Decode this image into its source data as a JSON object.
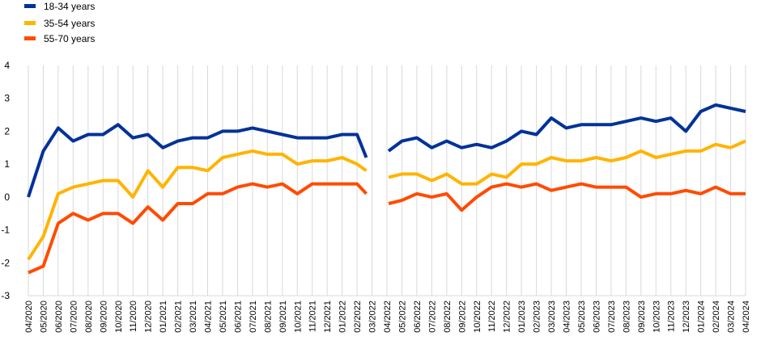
{
  "chart_data": {
    "type": "line",
    "title": "",
    "xlabel": "",
    "ylabel": "",
    "ylim": [
      -3,
      4
    ],
    "yticks": [
      -3,
      -2,
      -1,
      0,
      1,
      2,
      3,
      4
    ],
    "grid": "vertical",
    "legend": "top-left",
    "categories": [
      "04/2020",
      "05/2020",
      "06/2020",
      "07/2020",
      "08/2020",
      "09/2020",
      "10/2020",
      "11/2020",
      "12/2020",
      "01/2021",
      "02/2021",
      "03/2021",
      "04/2021",
      "05/2021",
      "06/2021",
      "07/2021",
      "08/2021",
      "09/2021",
      "10/2021",
      "11/2021",
      "12/2021",
      "01/2022",
      "02/2022",
      "03/2022",
      "04/2022",
      "05/2022",
      "06/2022",
      "07/2022",
      "08/2022",
      "09/2022",
      "10/2022",
      "11/2022",
      "12/2022",
      "01/2023",
      "02/2023",
      "03/2023",
      "04/2023",
      "05/2023",
      "06/2023",
      "07/2023",
      "08/2023",
      "09/2023",
      "10/2023",
      "11/2023",
      "12/2023",
      "01/2024",
      "02/2024",
      "03/2024",
      "04/2024"
    ],
    "break_after_index": 23,
    "series": [
      {
        "name": "18-34 years",
        "color": "#003299",
        "pre_break_last": 1.2,
        "values": [
          0.0,
          1.4,
          2.1,
          1.7,
          1.9,
          1.9,
          2.2,
          1.8,
          1.9,
          1.5,
          1.7,
          1.8,
          1.8,
          2.0,
          2.0,
          2.1,
          2.0,
          1.9,
          1.8,
          1.8,
          1.8,
          1.9,
          1.9,
          1.3,
          1.4,
          1.7,
          1.8,
          1.5,
          1.7,
          1.5,
          1.6,
          1.5,
          1.7,
          2.0,
          1.9,
          2.4,
          2.1,
          2.2,
          2.2,
          2.2,
          2.3,
          2.4,
          2.3,
          2.4,
          2.0,
          2.6,
          2.8,
          2.7,
          2.6
        ]
      },
      {
        "name": "35-54 years",
        "color": "#FFB400",
        "pre_break_last": 0.8,
        "values": [
          -1.9,
          -1.2,
          0.1,
          0.3,
          0.4,
          0.5,
          0.5,
          0.0,
          0.8,
          0.3,
          0.9,
          0.9,
          0.8,
          1.2,
          1.3,
          1.4,
          1.3,
          1.3,
          1.0,
          1.1,
          1.1,
          1.2,
          1.0,
          0.6,
          0.6,
          0.7,
          0.7,
          0.5,
          0.7,
          0.4,
          0.4,
          0.7,
          0.6,
          1.0,
          1.0,
          1.2,
          1.1,
          1.1,
          1.2,
          1.1,
          1.2,
          1.4,
          1.2,
          1.3,
          1.4,
          1.4,
          1.6,
          1.5,
          1.7
        ]
      },
      {
        "name": "55-70 years",
        "color": "#FF4B00",
        "pre_break_last": 0.1,
        "values": [
          -2.3,
          -2.1,
          -0.8,
          -0.5,
          -0.7,
          -0.5,
          -0.5,
          -0.8,
          -0.3,
          -0.7,
          -0.2,
          -0.2,
          0.1,
          0.1,
          0.3,
          0.4,
          0.3,
          0.4,
          0.1,
          0.4,
          0.4,
          0.4,
          0.4,
          0.0,
          -0.2,
          -0.1,
          0.1,
          0.0,
          0.1,
          -0.4,
          0.0,
          0.3,
          0.4,
          0.3,
          0.4,
          0.2,
          0.3,
          0.4,
          0.3,
          0.3,
          0.3,
          0.0,
          0.1,
          0.1,
          0.2,
          0.1,
          0.3,
          0.1,
          0.1
        ]
      }
    ]
  }
}
